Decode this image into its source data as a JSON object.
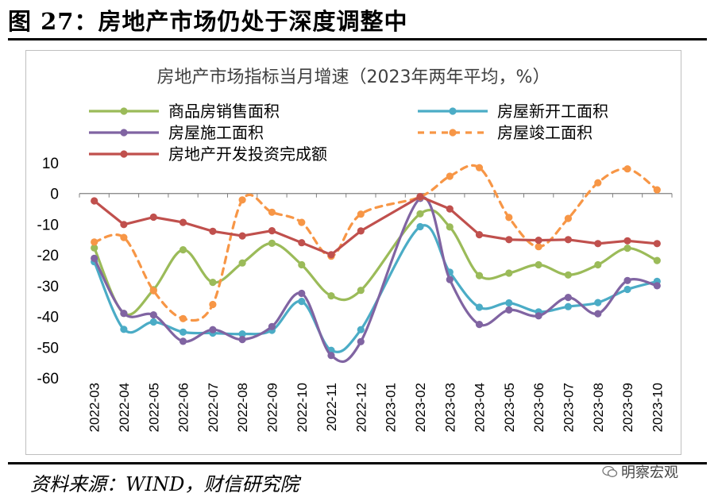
{
  "figure": {
    "title": "图 27：房地产市场仍处于深度调整中",
    "source": "资料来源：WIND，财信研究院",
    "brand": "明察宏观"
  },
  "colors": {
    "商品房销售面积": "#9bbb59",
    "房屋新开工面积": "#4bacc6",
    "房屋施工面积": "#8064a2",
    "房屋竣工面积": "#f79646",
    "房地产开发投资完成额": "#c0504d"
  },
  "chart_data": {
    "type": "line",
    "title": "房地产市场指标当月增速（2023年两年平均，%）",
    "categories": [
      "2022-03",
      "2022-04",
      "2022-05",
      "2022-06",
      "2022-07",
      "2022-08",
      "2022-09",
      "2022-10",
      "2022-11",
      "2022-12",
      "2023-01",
      "2023-02",
      "2023-03",
      "2023-04",
      "2023-05",
      "2023-06",
      "2023-07",
      "2023-08",
      "2023-09",
      "2023-10"
    ],
    "ylim": [
      -60,
      10
    ],
    "yticks": [
      10,
      0,
      -10,
      -20,
      -30,
      -40,
      -50,
      -60
    ],
    "legend_position": "top",
    "series": [
      {
        "name": "商品房销售面积",
        "style": "solid-smooth",
        "values": [
          -17.7,
          -39.0,
          -31.3,
          -18.3,
          -28.9,
          -22.6,
          -16.2,
          -23.2,
          -33.3,
          -31.5,
          null,
          -6.6,
          -10.9,
          -26.7,
          -25.9,
          -23.2,
          -26.5,
          -23.2,
          -17.8,
          -21.8
        ]
      },
      {
        "name": "房屋新开工面积",
        "style": "solid-smooth",
        "values": [
          -22.2,
          -44.2,
          -41.8,
          -45.1,
          -45.4,
          -45.7,
          -44.5,
          -35.1,
          -51.0,
          -44.3,
          null,
          -10.8,
          -25.6,
          -37.0,
          -35.6,
          -38.5,
          -36.8,
          -35.5,
          -31.2,
          -28.6
        ]
      },
      {
        "name": "房屋施工面积",
        "style": "solid-smooth",
        "values": [
          -21.1,
          -39.0,
          -39.5,
          -48.1,
          -44.3,
          -47.5,
          -43.3,
          -32.5,
          -52.7,
          -48.2,
          null,
          -1.6,
          -28.0,
          -42.6,
          -37.9,
          -39.8,
          -33.8,
          -39.1,
          -28.3,
          -30.0
        ]
      },
      {
        "name": "房屋竣工面积",
        "style": "dashed-smooth",
        "values": [
          -15.8,
          -14.3,
          -31.6,
          -40.7,
          -36.1,
          -2.1,
          -6.1,
          -9.4,
          -20.4,
          -6.7,
          null,
          -1.1,
          5.6,
          8.4,
          -7.8,
          -17.3,
          -8.1,
          3.5,
          8.0,
          1.2
        ]
      },
      {
        "name": "房地产开发投资完成额",
        "style": "solid",
        "values": [
          -2.4,
          -10.1,
          -7.7,
          -9.4,
          -12.3,
          -13.8,
          -12.1,
          -16.0,
          -19.9,
          -12.2,
          null,
          -1.0,
          -5.0,
          -13.4,
          -15.0,
          -15.2,
          -15.0,
          -16.3,
          -15.4,
          -16.3
        ]
      }
    ]
  }
}
